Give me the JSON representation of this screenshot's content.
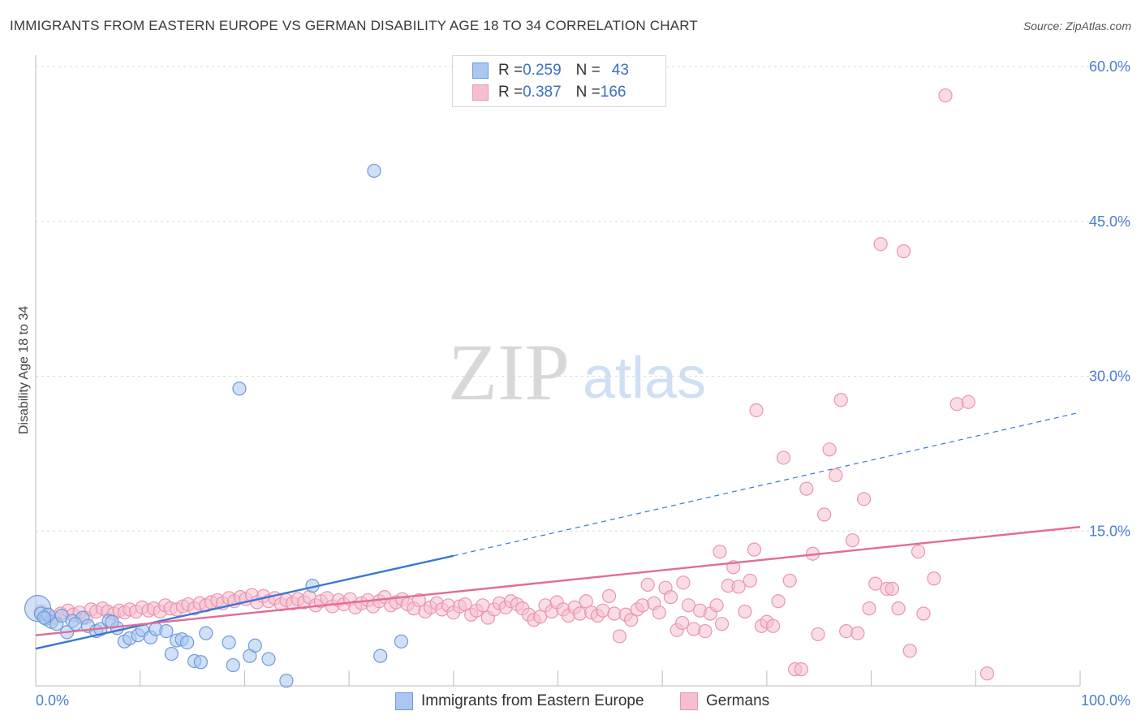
{
  "title": "IMMIGRANTS FROM EASTERN EUROPE VS GERMAN DISABILITY AGE 18 TO 34 CORRELATION CHART",
  "source": "Source: ZipAtlas.com",
  "watermark": {
    "zip": "ZIP",
    "atlas": "atlas"
  },
  "legend": {
    "rows": [
      {
        "r_label": "R = ",
        "r_value": "0.259",
        "n_label": "N = ",
        "n_value": "43",
        "color": "#a9c7f0",
        "stroke": "#6f9ad9"
      },
      {
        "r_label": "R = ",
        "r_value": "0.387",
        "n_label": "N = ",
        "n_value": "166",
        "color": "#f6bfd0",
        "stroke": "#e896b0"
      }
    ]
  },
  "bottom_legend": [
    {
      "label": "Immigrants from Eastern Europe",
      "color": "#a9c7f0",
      "stroke": "#6f9ad9"
    },
    {
      "label": "Germans",
      "color": "#f6bfd0",
      "stroke": "#e896b0"
    }
  ],
  "chart_data": {
    "type": "scatter",
    "title": "IMMIGRANTS FROM EASTERN EUROPE VS GERMAN DISABILITY AGE 18 TO 34 CORRELATION CHART",
    "xlabel": "",
    "ylabel": "Disability Age 18 to 34",
    "xlim": [
      0,
      100
    ],
    "ylim": [
      0,
      62
    ],
    "x_tick_labels": [
      "0.0%",
      "100.0%"
    ],
    "y_ticks": [
      15,
      30,
      45,
      60
    ],
    "y_tick_labels": [
      "15.0%",
      "30.0%",
      "45.0%",
      "60.0%"
    ],
    "grid": true,
    "legend_position": "top-center",
    "series": [
      {
        "name": "Immigrants from Eastern Europe",
        "color": "#a9c7f0",
        "stroke": "#6f9ad9",
        "points": [
          [
            0.2,
            7.5
          ],
          [
            0.5,
            7.0
          ],
          [
            1.0,
            6.5
          ],
          [
            1.5,
            6.2
          ],
          [
            2.0,
            6.0
          ],
          [
            2.5,
            6.8
          ],
          [
            3.0,
            5.2
          ],
          [
            3.5,
            6.3
          ],
          [
            4.5,
            6.6
          ],
          [
            5.0,
            5.8
          ],
          [
            5.8,
            5.3
          ],
          [
            6.2,
            5.5
          ],
          [
            7.0,
            6.3
          ],
          [
            7.8,
            5.6
          ],
          [
            8.5,
            4.3
          ],
          [
            9.0,
            4.6
          ],
          [
            9.8,
            4.9
          ],
          [
            10.2,
            5.4
          ],
          [
            11.0,
            4.7
          ],
          [
            11.5,
            5.5
          ],
          [
            12.5,
            5.3
          ],
          [
            13.0,
            3.1
          ],
          [
            13.5,
            4.4
          ],
          [
            14.0,
            4.5
          ],
          [
            14.5,
            4.2
          ],
          [
            15.2,
            2.4
          ],
          [
            15.8,
            2.3
          ],
          [
            16.3,
            5.1
          ],
          [
            18.5,
            4.2
          ],
          [
            18.9,
            2.0
          ],
          [
            19.5,
            28.8
          ],
          [
            20.5,
            2.9
          ],
          [
            21.0,
            3.9
          ],
          [
            22.3,
            2.6
          ],
          [
            24.0,
            0.5
          ],
          [
            26.5,
            9.7
          ],
          [
            32.4,
            49.9
          ],
          [
            33.0,
            2.9
          ],
          [
            35.0,
            4.3
          ],
          [
            7.3,
            6.2
          ],
          [
            3.8,
            6.0
          ],
          [
            1.2,
            6.9
          ],
          [
            0.8,
            6.6
          ]
        ]
      },
      {
        "name": "Germans",
        "color": "#f6bfd0",
        "stroke": "#e896b0",
        "points": [
          [
            0.5,
            7.2
          ],
          [
            1.2,
            6.8
          ],
          [
            1.8,
            6.6
          ],
          [
            2.4,
            7.0
          ],
          [
            3.1,
            7.3
          ],
          [
            3.6,
            6.9
          ],
          [
            4.2,
            7.1
          ],
          [
            4.8,
            6.6
          ],
          [
            5.3,
            7.4
          ],
          [
            5.8,
            7.2
          ],
          [
            6.4,
            7.5
          ],
          [
            6.9,
            7.2
          ],
          [
            7.5,
            7.0
          ],
          [
            8.0,
            7.3
          ],
          [
            8.5,
            7.1
          ],
          [
            9.0,
            7.4
          ],
          [
            9.6,
            7.2
          ],
          [
            10.2,
            7.6
          ],
          [
            10.8,
            7.3
          ],
          [
            11.3,
            7.5
          ],
          [
            11.9,
            7.2
          ],
          [
            12.4,
            7.8
          ],
          [
            12.9,
            7.5
          ],
          [
            13.5,
            7.4
          ],
          [
            14.1,
            7.7
          ],
          [
            14.6,
            7.9
          ],
          [
            15.2,
            7.5
          ],
          [
            15.7,
            8.0
          ],
          [
            16.3,
            7.8
          ],
          [
            16.8,
            8.1
          ],
          [
            17.4,
            8.3
          ],
          [
            17.9,
            8.0
          ],
          [
            18.5,
            8.5
          ],
          [
            19.0,
            8.2
          ],
          [
            19.6,
            8.6
          ],
          [
            20.1,
            8.4
          ],
          [
            20.7,
            8.8
          ],
          [
            21.2,
            8.1
          ],
          [
            21.8,
            8.7
          ],
          [
            22.3,
            8.2
          ],
          [
            22.9,
            8.5
          ],
          [
            23.5,
            7.9
          ],
          [
            24.0,
            8.3
          ],
          [
            24.6,
            8.0
          ],
          [
            25.1,
            8.4
          ],
          [
            25.7,
            8.1
          ],
          [
            26.2,
            8.6
          ],
          [
            26.8,
            7.8
          ],
          [
            27.3,
            8.2
          ],
          [
            27.9,
            8.5
          ],
          [
            28.4,
            7.7
          ],
          [
            29.0,
            8.3
          ],
          [
            29.5,
            7.9
          ],
          [
            30.1,
            8.4
          ],
          [
            30.6,
            7.6
          ],
          [
            31.2,
            8.0
          ],
          [
            31.8,
            8.3
          ],
          [
            32.3,
            7.7
          ],
          [
            32.9,
            8.2
          ],
          [
            33.4,
            8.6
          ],
          [
            34.0,
            7.8
          ],
          [
            34.5,
            8.1
          ],
          [
            35.1,
            8.4
          ],
          [
            35.6,
            7.9
          ],
          [
            36.2,
            7.5
          ],
          [
            36.7,
            8.3
          ],
          [
            37.3,
            7.2
          ],
          [
            37.8,
            7.6
          ],
          [
            38.4,
            8.0
          ],
          [
            38.9,
            7.4
          ],
          [
            39.5,
            7.8
          ],
          [
            40.0,
            7.1
          ],
          [
            40.6,
            7.7
          ],
          [
            41.1,
            7.9
          ],
          [
            41.7,
            6.9
          ],
          [
            42.2,
            7.3
          ],
          [
            42.8,
            7.8
          ],
          [
            43.3,
            6.6
          ],
          [
            43.9,
            7.4
          ],
          [
            44.4,
            8.0
          ],
          [
            45.0,
            7.6
          ],
          [
            45.5,
            8.2
          ],
          [
            46.1,
            7.9
          ],
          [
            46.6,
            7.5
          ],
          [
            47.2,
            6.9
          ],
          [
            47.7,
            6.4
          ],
          [
            48.3,
            6.7
          ],
          [
            48.8,
            7.8
          ],
          [
            49.4,
            7.2
          ],
          [
            49.9,
            8.1
          ],
          [
            50.5,
            7.4
          ],
          [
            51.0,
            6.8
          ],
          [
            51.6,
            7.6
          ],
          [
            52.1,
            7.0
          ],
          [
            52.7,
            8.2
          ],
          [
            53.2,
            7.1
          ],
          [
            53.8,
            6.8
          ],
          [
            54.3,
            7.3
          ],
          [
            54.9,
            8.7
          ],
          [
            55.4,
            7.0
          ],
          [
            55.9,
            4.8
          ],
          [
            56.5,
            6.9
          ],
          [
            57.0,
            6.4
          ],
          [
            57.6,
            7.4
          ],
          [
            58.1,
            7.8
          ],
          [
            58.6,
            9.8
          ],
          [
            59.2,
            8.0
          ],
          [
            59.7,
            7.1
          ],
          [
            60.3,
            9.5
          ],
          [
            60.8,
            8.6
          ],
          [
            61.4,
            5.4
          ],
          [
            61.9,
            6.1
          ],
          [
            62.5,
            7.8
          ],
          [
            63.0,
            5.5
          ],
          [
            63.6,
            7.3
          ],
          [
            64.1,
            5.3
          ],
          [
            64.6,
            7.0
          ],
          [
            65.2,
            7.8
          ],
          [
            65.7,
            6.0
          ],
          [
            66.3,
            9.7
          ],
          [
            66.8,
            11.5
          ],
          [
            67.3,
            9.6
          ],
          [
            67.9,
            7.2
          ],
          [
            68.4,
            10.2
          ],
          [
            69.0,
            26.7
          ],
          [
            69.5,
            5.8
          ],
          [
            70.0,
            6.2
          ],
          [
            70.6,
            5.8
          ],
          [
            71.1,
            8.2
          ],
          [
            71.6,
            22.1
          ],
          [
            72.2,
            10.2
          ],
          [
            72.7,
            1.6
          ],
          [
            73.3,
            1.6
          ],
          [
            73.8,
            19.1
          ],
          [
            74.4,
            12.8
          ],
          [
            74.9,
            5.0
          ],
          [
            75.5,
            16.6
          ],
          [
            76.0,
            22.9
          ],
          [
            76.6,
            20.4
          ],
          [
            77.1,
            27.7
          ],
          [
            77.6,
            5.3
          ],
          [
            78.2,
            14.1
          ],
          [
            78.7,
            5.1
          ],
          [
            79.3,
            18.1
          ],
          [
            79.8,
            7.5
          ],
          [
            80.4,
            9.9
          ],
          [
            80.9,
            42.8
          ],
          [
            81.5,
            9.4
          ],
          [
            82.0,
            9.4
          ],
          [
            82.6,
            7.5
          ],
          [
            83.1,
            42.1
          ],
          [
            83.7,
            3.4
          ],
          [
            65.5,
            13.0
          ],
          [
            68.8,
            13.2
          ],
          [
            87.1,
            57.2
          ],
          [
            88.2,
            27.3
          ],
          [
            89.3,
            27.5
          ],
          [
            91.1,
            1.2
          ],
          [
            84.5,
            13.0
          ],
          [
            86.0,
            10.4
          ],
          [
            85.0,
            7.0
          ],
          [
            62.0,
            10.0
          ]
        ]
      }
    ],
    "trendlines": [
      {
        "series": "Immigrants from Eastern Europe",
        "solid": [
          [
            0,
            3.6
          ],
          [
            40,
            12.6
          ]
        ],
        "dashed": [
          [
            40,
            12.6
          ],
          [
            100,
            26.5
          ]
        ],
        "color": "#3a77d6"
      },
      {
        "series": "Germans",
        "solid": [
          [
            0,
            4.9
          ],
          [
            100,
            15.4
          ]
        ],
        "color": "#e56b95"
      }
    ]
  }
}
